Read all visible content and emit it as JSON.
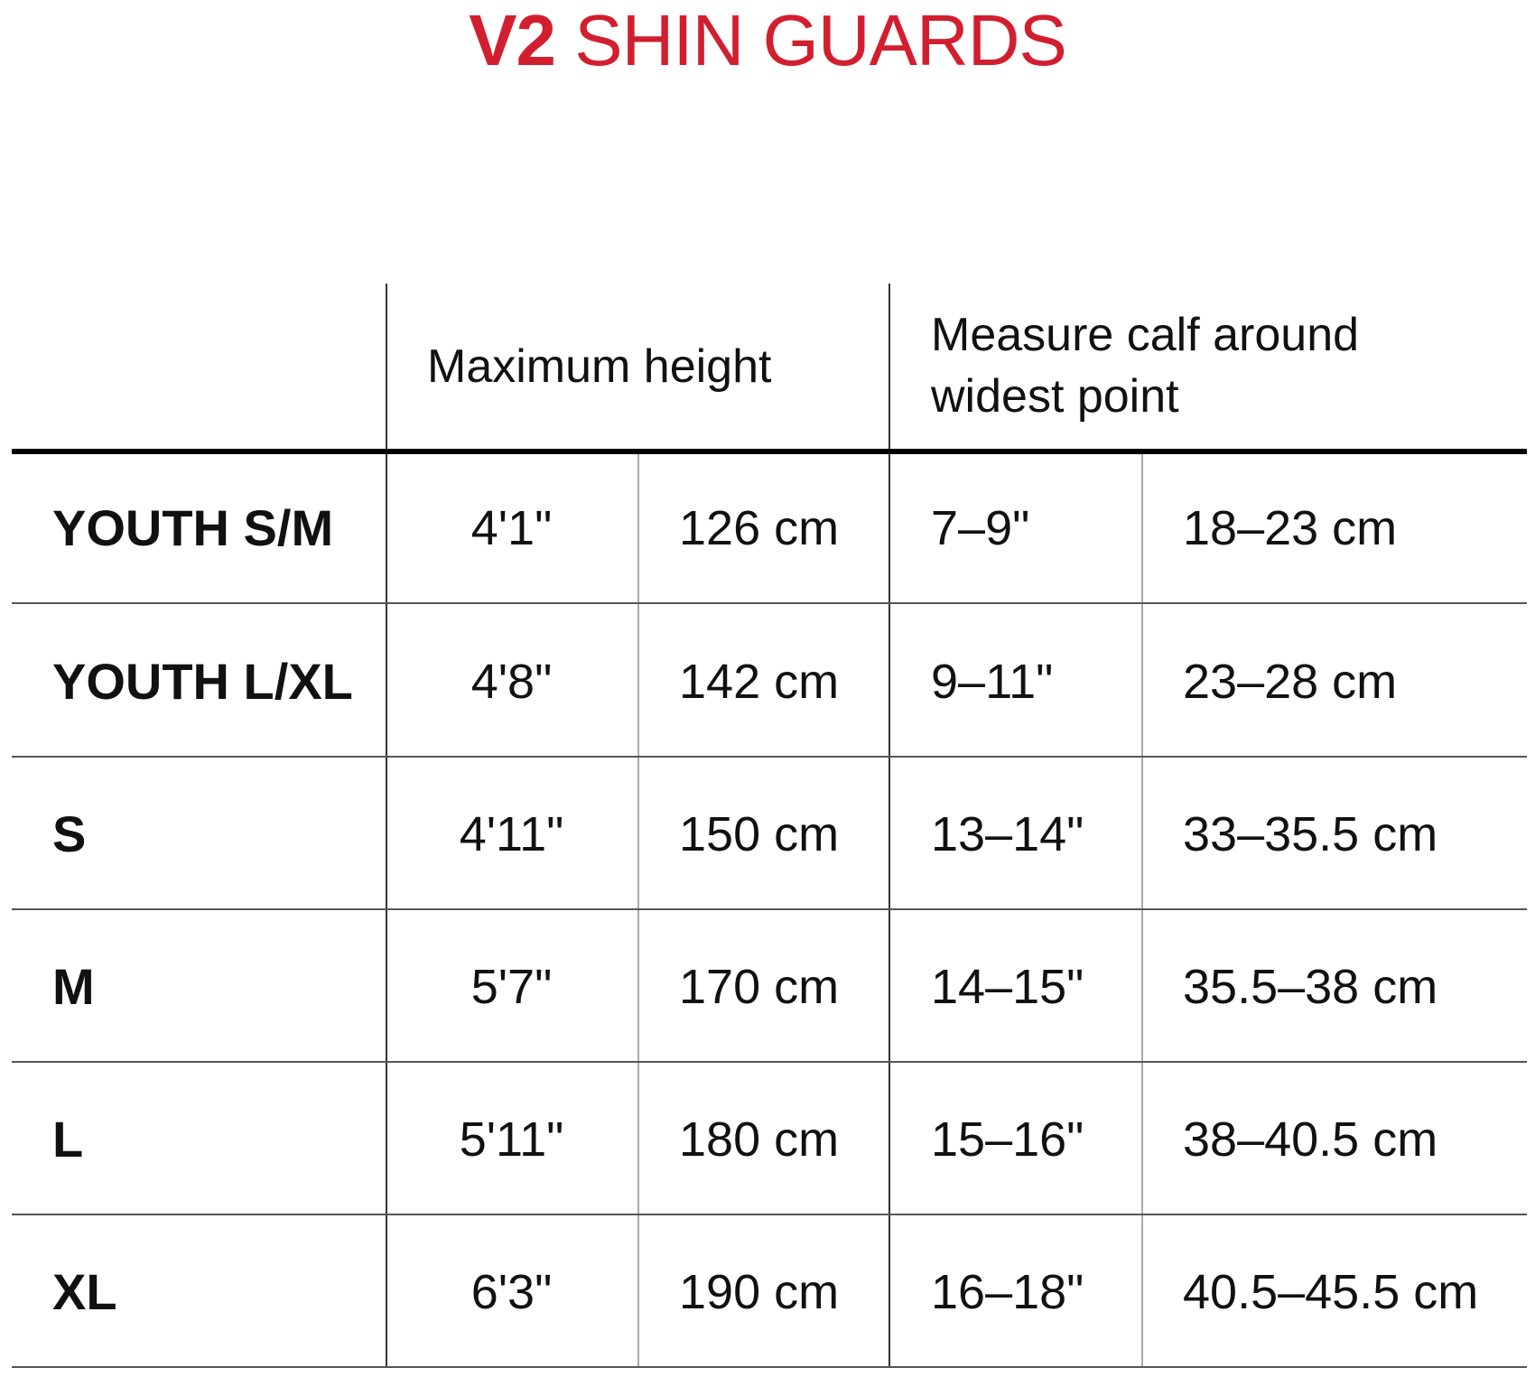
{
  "title": {
    "bold": "V2",
    "rest": "SHIN GUARDS",
    "color": "#d21f2f"
  },
  "headers": {
    "height": "Maximum height",
    "calf_line1": "Measure calf around",
    "calf_line2": "widest point"
  },
  "rows": [
    {
      "size": "YOUTH S/M",
      "height_in": "4'1\"",
      "height_cm": "126 cm",
      "calf_in": "7–9\"",
      "calf_cm": "18–23 cm"
    },
    {
      "size": "YOUTH L/XL",
      "height_in": "4'8\"",
      "height_cm": "142 cm",
      "calf_in": "9–11\"",
      "calf_cm": "23–28 cm"
    },
    {
      "size": "S",
      "height_in": "4'11\"",
      "height_cm": "150 cm",
      "calf_in": "13–14\"",
      "calf_cm": "33–35.5 cm"
    },
    {
      "size": "M",
      "height_in": "5'7\"",
      "height_cm": "170 cm",
      "calf_in": "14–15\"",
      "calf_cm": "35.5–38 cm"
    },
    {
      "size": "L",
      "height_in": "5'11\"",
      "height_cm": "180 cm",
      "calf_in": "15–16\"",
      "calf_cm": "38–40.5 cm"
    },
    {
      "size": "XL",
      "height_in": "6'3\"",
      "height_cm": "190 cm",
      "calf_in": "16–18\"",
      "calf_cm": "40.5–45.5 cm"
    }
  ]
}
